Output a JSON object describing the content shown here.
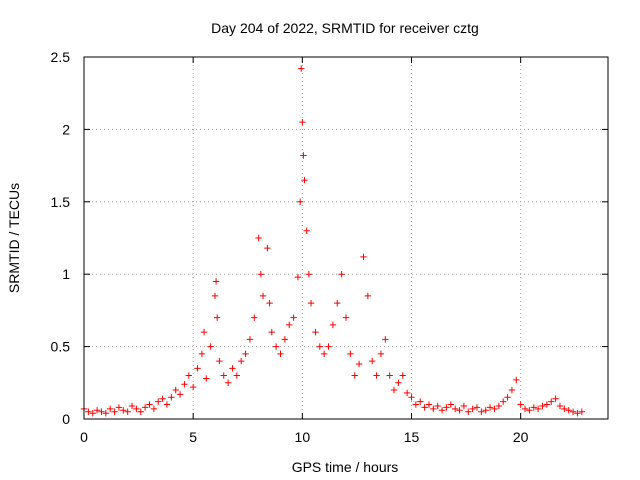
{
  "chart_data": {
    "type": "scatter",
    "title": "Day 204 of 2022, SRMTID for receiver cztg",
    "xlabel": "GPS time / hours",
    "ylabel": "SRMTID / TECUs",
    "xlim": [
      0,
      24
    ],
    "ylim": [
      0,
      2.5
    ],
    "xticks": [
      0,
      5,
      10,
      15,
      20
    ],
    "xtick_labels": [
      "0",
      "5",
      "10",
      "15",
      "20"
    ],
    "yticks": [
      0,
      0.5,
      1,
      1.5,
      2,
      2.5
    ],
    "ytick_labels": [
      "0",
      "0.5",
      "1",
      "1.5",
      "2",
      "2.5"
    ],
    "grid": true,
    "marker": "+",
    "color": "#ff0000",
    "series": [
      {
        "name": "SRMTID",
        "points": [
          [
            0.0,
            0.07
          ],
          [
            0.2,
            0.05
          ],
          [
            0.4,
            0.04
          ],
          [
            0.6,
            0.06
          ],
          [
            0.8,
            0.05
          ],
          [
            1.0,
            0.04
          ],
          [
            1.2,
            0.07
          ],
          [
            1.4,
            0.05
          ],
          [
            1.6,
            0.08
          ],
          [
            1.8,
            0.06
          ],
          [
            2.0,
            0.05
          ],
          [
            2.2,
            0.09
          ],
          [
            2.4,
            0.07
          ],
          [
            2.6,
            0.05
          ],
          [
            2.8,
            0.08
          ],
          [
            3.0,
            0.1
          ],
          [
            3.2,
            0.07
          ],
          [
            3.4,
            0.12
          ],
          [
            3.6,
            0.14
          ],
          [
            3.8,
            0.1
          ],
          [
            4.0,
            0.15
          ],
          [
            4.2,
            0.2
          ],
          [
            4.4,
            0.17
          ],
          [
            4.6,
            0.24
          ],
          [
            4.8,
            0.3
          ],
          [
            5.0,
            0.22
          ],
          [
            5.2,
            0.35
          ],
          [
            5.4,
            0.45
          ],
          [
            5.5,
            0.6
          ],
          [
            5.6,
            0.28
          ],
          [
            5.8,
            0.5
          ],
          [
            6.0,
            0.85
          ],
          [
            6.05,
            0.95
          ],
          [
            6.1,
            0.7
          ],
          [
            6.2,
            0.4
          ],
          [
            6.4,
            0.3
          ],
          [
            6.6,
            0.25
          ],
          [
            6.8,
            0.35
          ],
          [
            7.0,
            0.3
          ],
          [
            7.2,
            0.4
          ],
          [
            7.4,
            0.45
          ],
          [
            7.6,
            0.55
          ],
          [
            7.8,
            0.7
          ],
          [
            8.0,
            1.25
          ],
          [
            8.1,
            1.0
          ],
          [
            8.2,
            0.85
          ],
          [
            8.4,
            1.18
          ],
          [
            8.5,
            0.8
          ],
          [
            8.6,
            0.6
          ],
          [
            8.8,
            0.5
          ],
          [
            9.0,
            0.45
          ],
          [
            9.2,
            0.55
          ],
          [
            9.4,
            0.65
          ],
          [
            9.6,
            0.7
          ],
          [
            9.8,
            0.98
          ],
          [
            9.9,
            1.5
          ],
          [
            9.95,
            2.42
          ],
          [
            10.0,
            2.05
          ],
          [
            10.05,
            1.82
          ],
          [
            10.1,
            1.65
          ],
          [
            10.2,
            1.3
          ],
          [
            10.3,
            1.0
          ],
          [
            10.4,
            0.8
          ],
          [
            10.6,
            0.6
          ],
          [
            10.8,
            0.5
          ],
          [
            11.0,
            0.45
          ],
          [
            11.2,
            0.5
          ],
          [
            11.4,
            0.65
          ],
          [
            11.6,
            0.8
          ],
          [
            11.8,
            1.0
          ],
          [
            12.0,
            0.7
          ],
          [
            12.2,
            0.45
          ],
          [
            12.4,
            0.3
          ],
          [
            12.6,
            0.38
          ],
          [
            12.8,
            1.12
          ],
          [
            13.0,
            0.85
          ],
          [
            13.2,
            0.4
          ],
          [
            13.4,
            0.3
          ],
          [
            13.6,
            0.45
          ],
          [
            13.8,
            0.55
          ],
          [
            14.0,
            0.3
          ],
          [
            14.2,
            0.2
          ],
          [
            14.4,
            0.25
          ],
          [
            14.6,
            0.3
          ],
          [
            14.8,
            0.18
          ],
          [
            15.0,
            0.15
          ],
          [
            15.2,
            0.1
          ],
          [
            15.4,
            0.12
          ],
          [
            15.6,
            0.08
          ],
          [
            15.8,
            0.1
          ],
          [
            16.0,
            0.07
          ],
          [
            16.2,
            0.09
          ],
          [
            16.4,
            0.06
          ],
          [
            16.6,
            0.08
          ],
          [
            16.8,
            0.1
          ],
          [
            17.0,
            0.07
          ],
          [
            17.2,
            0.06
          ],
          [
            17.4,
            0.09
          ],
          [
            17.6,
            0.05
          ],
          [
            17.8,
            0.07
          ],
          [
            18.0,
            0.08
          ],
          [
            18.2,
            0.05
          ],
          [
            18.4,
            0.06
          ],
          [
            18.6,
            0.08
          ],
          [
            18.8,
            0.07
          ],
          [
            19.0,
            0.09
          ],
          [
            19.2,
            0.12
          ],
          [
            19.4,
            0.15
          ],
          [
            19.6,
            0.2
          ],
          [
            19.8,
            0.27
          ],
          [
            20.0,
            0.1
          ],
          [
            20.2,
            0.07
          ],
          [
            20.4,
            0.06
          ],
          [
            20.6,
            0.08
          ],
          [
            20.8,
            0.07
          ],
          [
            21.0,
            0.09
          ],
          [
            21.2,
            0.1
          ],
          [
            21.4,
            0.12
          ],
          [
            21.6,
            0.14
          ],
          [
            21.8,
            0.09
          ],
          [
            22.0,
            0.07
          ],
          [
            22.2,
            0.06
          ],
          [
            22.4,
            0.05
          ],
          [
            22.6,
            0.04
          ],
          [
            22.8,
            0.05
          ]
        ]
      }
    ]
  }
}
